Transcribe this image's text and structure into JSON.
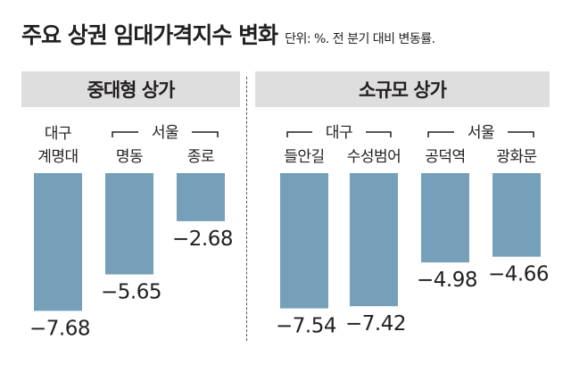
{
  "header": {
    "title": "주요 상권 임대가격지수 변화",
    "subtitle": "단위: %. 전 분기 대비 변동률."
  },
  "panels": [
    {
      "title": "중대형 상가"
    },
    {
      "title": "소규모 상가"
    }
  ],
  "colors": {
    "bar": "#769fb9",
    "panel_header_bg": "#dedede",
    "text": "#231f20"
  },
  "chart_data": [
    {
      "type": "bar",
      "title": "중대형 상가",
      "categories": [
        [
          "대구",
          "계명대"
        ],
        [
          "명동"
        ],
        [
          "종로"
        ]
      ],
      "groups": [
        {
          "label": "서울",
          "categories": [
            1,
            2
          ]
        }
      ],
      "values": [
        -7.68,
        -5.65,
        -2.68
      ],
      "value_labels": [
        "−7.68",
        "−5.65",
        "−2.68"
      ],
      "units": "%"
    },
    {
      "type": "bar",
      "title": "소규모 상가",
      "categories": [
        [
          "들안길"
        ],
        [
          "수성범어"
        ],
        [
          "공덕역"
        ],
        [
          "광화문"
        ]
      ],
      "groups": [
        {
          "label": "대구",
          "categories": [
            0,
            1
          ]
        },
        {
          "label": "서울",
          "categories": [
            2,
            3
          ]
        }
      ],
      "values": [
        -7.54,
        -7.42,
        -4.98,
        -4.66
      ],
      "value_labels": [
        "−7.54",
        "−7.42",
        "−4.98",
        "−4.66"
      ],
      "units": "%"
    }
  ]
}
